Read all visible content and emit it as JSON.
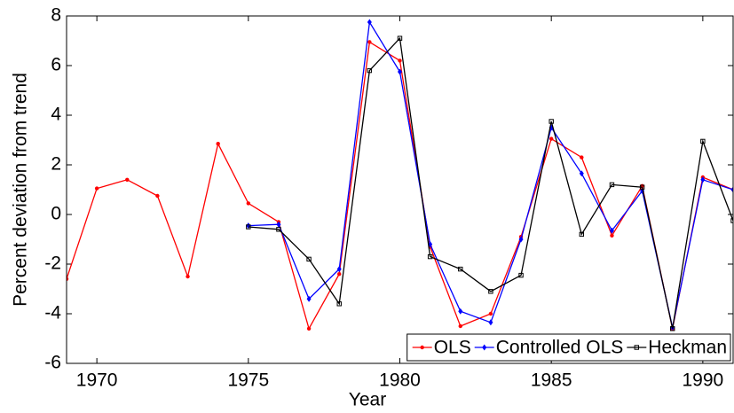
{
  "chart_data": {
    "type": "line",
    "xlabel": "Year",
    "ylabel": "Percent deviation from trend",
    "x": [
      1969,
      1970,
      1971,
      1972,
      1973,
      1974,
      1975,
      1976,
      1977,
      1978,
      1979,
      1980,
      1981,
      1982,
      1983,
      1984,
      1985,
      1986,
      1987,
      1988,
      1989,
      1990,
      1991
    ],
    "series": [
      {
        "name": "OLS",
        "color": "#ff0000",
        "marker": "dot",
        "values": [
          -2.6,
          1.05,
          1.4,
          0.75,
          -2.5,
          2.85,
          0.45,
          -0.3,
          -4.6,
          -2.4,
          6.95,
          6.2,
          -1.3,
          -4.5,
          -4.0,
          -0.9,
          3.05,
          2.3,
          -0.85,
          1.15,
          -4.6,
          1.5,
          1.0
        ]
      },
      {
        "name": "Controlled OLS",
        "color": "#0000ff",
        "marker": "diamond",
        "values": [
          null,
          null,
          null,
          null,
          null,
          null,
          -0.45,
          -0.4,
          -3.4,
          -2.2,
          7.75,
          5.75,
          -1.2,
          -3.9,
          -4.35,
          -1.0,
          3.5,
          1.65,
          -0.65,
          0.95,
          -4.55,
          1.4,
          1.0
        ]
      },
      {
        "name": "Heckman",
        "color": "#000000",
        "marker": "square",
        "values": [
          null,
          null,
          null,
          null,
          null,
          null,
          -0.5,
          -0.6,
          -1.8,
          -3.6,
          5.8,
          7.1,
          -1.7,
          -2.2,
          -3.1,
          -2.45,
          3.75,
          -0.8,
          1.2,
          1.1,
          -4.6,
          2.95,
          -0.25
        ]
      }
    ],
    "xlim": [
      1969,
      1991
    ],
    "xticks": [
      1970,
      1975,
      1980,
      1985,
      1990
    ],
    "ylim": [
      -6,
      8
    ],
    "yticks": [
      -6,
      -4,
      -2,
      0,
      2,
      4,
      6,
      8
    ],
    "legend": "lower right"
  }
}
